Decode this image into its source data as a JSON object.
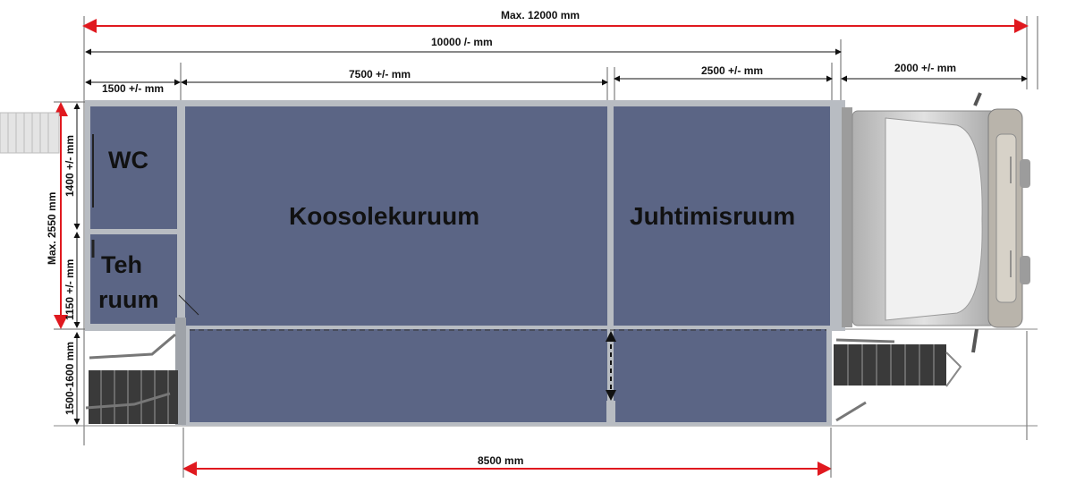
{
  "dimensions": {
    "max_length": "Max. 12000 mm",
    "total_length": "10000 /- mm",
    "wc_length": "1500 +/- mm",
    "meeting_length": "7500 +/- mm",
    "control_length": "2500 +/- mm",
    "cab_length": "2000 +/- mm",
    "max_width": "Max.  2550 mm",
    "wc_width": "1400 +/- mm",
    "tech_width": "1150 +/- mm",
    "extension_width": "1500-1600 mm",
    "extension_length": "8500 mm"
  },
  "rooms": {
    "wc": "WC",
    "tech_line1": "Teh",
    "tech_line2": "ruum",
    "meeting": "Koosolekuruum",
    "control": "Juhtimisruum"
  },
  "colors": {
    "room_fill": "#5b6585",
    "red_dimension": "#e0191f",
    "wall": "#b8bcc2",
    "cab_body": "#c9c9c9"
  },
  "icons": [
    "stairs-icon",
    "truck-cab-icon",
    "double-arrow-icon"
  ]
}
